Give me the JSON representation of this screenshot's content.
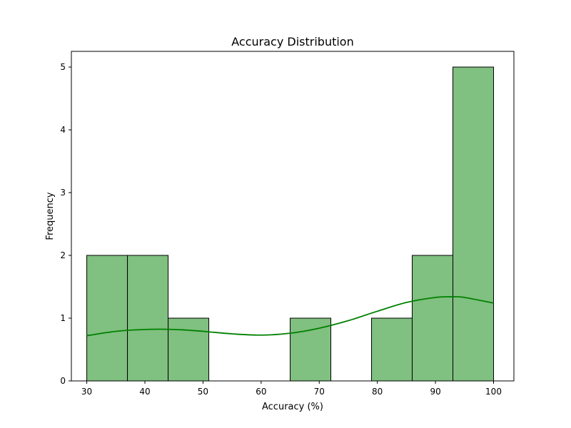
{
  "chart_data": {
    "type": "bar",
    "title": "Accuracy Distribution",
    "xlabel": "Accuracy (%)",
    "ylabel": "Frequency",
    "xlim": [
      27.35,
      103.5
    ],
    "ylim": [
      0,
      5.25
    ],
    "xticks": [
      "30",
      "40",
      "50",
      "60",
      "70",
      "80",
      "90",
      "100"
    ],
    "yticks": [
      "0",
      "1",
      "2",
      "3",
      "4",
      "5"
    ],
    "bins": [
      {
        "x0": 30,
        "x1": 37,
        "count": 2
      },
      {
        "x0": 37,
        "x1": 44,
        "count": 2
      },
      {
        "x0": 44,
        "x1": 51,
        "count": 1
      },
      {
        "x0": 51,
        "x1": 58,
        "count": 0
      },
      {
        "x0": 58,
        "x1": 65,
        "count": 0
      },
      {
        "x0": 65,
        "x1": 72,
        "count": 1
      },
      {
        "x0": 72,
        "x1": 79,
        "count": 0
      },
      {
        "x0": 79,
        "x1": 86,
        "count": 1
      },
      {
        "x0": 86,
        "x1": 93,
        "count": 2
      },
      {
        "x0": 93,
        "x1": 100,
        "count": 5
      }
    ],
    "kde": {
      "x": [
        30,
        35,
        40,
        45,
        50,
        55,
        60,
        65,
        70,
        75,
        80,
        85,
        90,
        93,
        95,
        100
      ],
      "y": [
        0.72,
        0.79,
        0.82,
        0.82,
        0.79,
        0.75,
        0.73,
        0.76,
        0.84,
        0.96,
        1.11,
        1.25,
        1.33,
        1.34,
        1.33,
        1.24
      ]
    },
    "colors": {
      "bar_fill": "#80c080",
      "bar_edge": "#000000",
      "kde_line": "#008000"
    },
    "grid": false,
    "legend": "none"
  }
}
